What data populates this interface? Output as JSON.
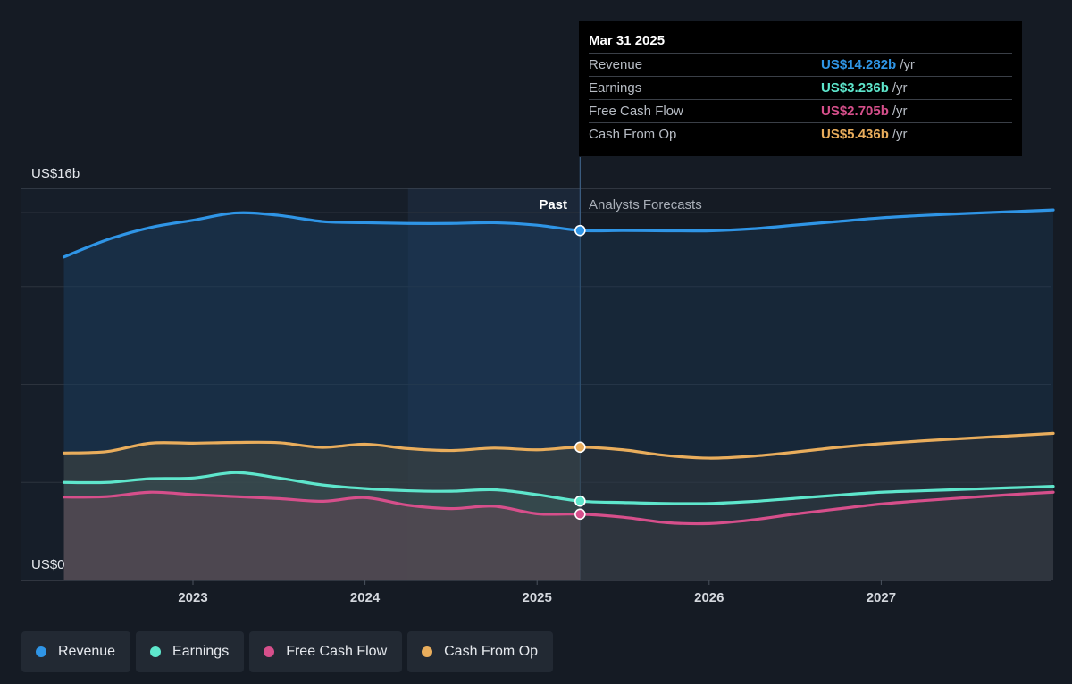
{
  "tooltip": {
    "date": "Mar 31 2025",
    "rows": [
      {
        "name": "Revenue",
        "value": "US$14.282b",
        "unit": "/yr",
        "color": "#2f95e6"
      },
      {
        "name": "Earnings",
        "value": "US$3.236b",
        "unit": "/yr",
        "color": "#5ee6cc"
      },
      {
        "name": "Free Cash Flow",
        "value": "US$2.705b",
        "unit": "/yr",
        "color": "#d64f8b"
      },
      {
        "name": "Cash From Op",
        "value": "US$5.436b",
        "unit": "/yr",
        "color": "#e9ad5c"
      }
    ]
  },
  "legend": [
    {
      "label": "Revenue",
      "color": "#2f95e6"
    },
    {
      "label": "Earnings",
      "color": "#5ee6cc"
    },
    {
      "label": "Free Cash Flow",
      "color": "#d64f8b"
    },
    {
      "label": "Cash From Op",
      "color": "#e9ad5c"
    }
  ],
  "chart_data": {
    "type": "area",
    "y_top_label": "US$16b",
    "y_bottom_label": "US$0",
    "ylim": [
      0,
      16
    ],
    "xlim": [
      2022.28,
      2028.0
    ],
    "x_ticks": [
      2023,
      2024,
      2025,
      2026,
      2027
    ],
    "x_tick_labels": [
      "2023",
      "2024",
      "2025",
      "2026",
      "2027"
    ],
    "past_label": "Past",
    "forecast_label": "Analysts Forecasts",
    "divider_x": 2025.25,
    "highlight_start_x": 2024.25,
    "series": [
      {
        "name": "Revenue",
        "color": "#2f95e6",
        "points": [
          [
            2022.25,
            13.2
          ],
          [
            2022.5,
            13.9
          ],
          [
            2022.75,
            14.4
          ],
          [
            2023.0,
            14.7
          ],
          [
            2023.25,
            15.0
          ],
          [
            2023.5,
            14.9
          ],
          [
            2023.75,
            14.65
          ],
          [
            2024.0,
            14.6
          ],
          [
            2024.25,
            14.57
          ],
          [
            2024.5,
            14.57
          ],
          [
            2024.75,
            14.6
          ],
          [
            2025.0,
            14.5
          ],
          [
            2025.25,
            14.282
          ],
          [
            2025.5,
            14.28
          ],
          [
            2025.75,
            14.27
          ],
          [
            2026.0,
            14.27
          ],
          [
            2026.25,
            14.35
          ],
          [
            2026.5,
            14.5
          ],
          [
            2026.75,
            14.65
          ],
          [
            2027.0,
            14.8
          ],
          [
            2027.25,
            14.9
          ],
          [
            2027.5,
            14.98
          ],
          [
            2027.75,
            15.05
          ],
          [
            2028.0,
            15.12
          ]
        ]
      },
      {
        "name": "Cash From Op",
        "color": "#e9ad5c",
        "points": [
          [
            2022.25,
            5.2
          ],
          [
            2022.5,
            5.26
          ],
          [
            2022.75,
            5.6
          ],
          [
            2023.0,
            5.6
          ],
          [
            2023.25,
            5.63
          ],
          [
            2023.5,
            5.62
          ],
          [
            2023.75,
            5.43
          ],
          [
            2024.0,
            5.56
          ],
          [
            2024.25,
            5.38
          ],
          [
            2024.5,
            5.3
          ],
          [
            2024.75,
            5.4
          ],
          [
            2025.0,
            5.33
          ],
          [
            2025.25,
            5.436
          ],
          [
            2025.5,
            5.33
          ],
          [
            2025.75,
            5.1
          ],
          [
            2026.0,
            4.99
          ],
          [
            2026.25,
            5.07
          ],
          [
            2026.5,
            5.24
          ],
          [
            2026.75,
            5.43
          ],
          [
            2027.0,
            5.58
          ],
          [
            2027.25,
            5.7
          ],
          [
            2027.5,
            5.8
          ],
          [
            2027.75,
            5.9
          ],
          [
            2028.0,
            6.0
          ]
        ]
      },
      {
        "name": "Earnings",
        "color": "#5ee6cc",
        "points": [
          [
            2022.25,
            4.0
          ],
          [
            2022.5,
            4.0
          ],
          [
            2022.75,
            4.15
          ],
          [
            2023.0,
            4.18
          ],
          [
            2023.25,
            4.4
          ],
          [
            2023.5,
            4.18
          ],
          [
            2023.75,
            3.9
          ],
          [
            2024.0,
            3.75
          ],
          [
            2024.25,
            3.66
          ],
          [
            2024.5,
            3.64
          ],
          [
            2024.75,
            3.7
          ],
          [
            2025.0,
            3.5
          ],
          [
            2025.25,
            3.236
          ],
          [
            2025.5,
            3.18
          ],
          [
            2025.75,
            3.14
          ],
          [
            2026.0,
            3.14
          ],
          [
            2026.25,
            3.22
          ],
          [
            2026.5,
            3.35
          ],
          [
            2026.75,
            3.48
          ],
          [
            2027.0,
            3.6
          ],
          [
            2027.25,
            3.66
          ],
          [
            2027.5,
            3.72
          ],
          [
            2027.75,
            3.78
          ],
          [
            2028.0,
            3.84
          ]
        ]
      },
      {
        "name": "Free Cash Flow",
        "color": "#d64f8b",
        "points": [
          [
            2022.25,
            3.4
          ],
          [
            2022.5,
            3.42
          ],
          [
            2022.75,
            3.6
          ],
          [
            2023.0,
            3.5
          ],
          [
            2023.25,
            3.42
          ],
          [
            2023.5,
            3.34
          ],
          [
            2023.75,
            3.23
          ],
          [
            2024.0,
            3.38
          ],
          [
            2024.25,
            3.07
          ],
          [
            2024.5,
            2.93
          ],
          [
            2024.75,
            3.03
          ],
          [
            2025.0,
            2.72
          ],
          [
            2025.25,
            2.705
          ],
          [
            2025.5,
            2.58
          ],
          [
            2025.75,
            2.36
          ],
          [
            2026.0,
            2.32
          ],
          [
            2026.25,
            2.47
          ],
          [
            2026.5,
            2.71
          ],
          [
            2026.75,
            2.92
          ],
          [
            2027.0,
            3.12
          ],
          [
            2027.25,
            3.26
          ],
          [
            2027.5,
            3.38
          ],
          [
            2027.75,
            3.5
          ],
          [
            2028.0,
            3.6
          ]
        ]
      }
    ]
  }
}
